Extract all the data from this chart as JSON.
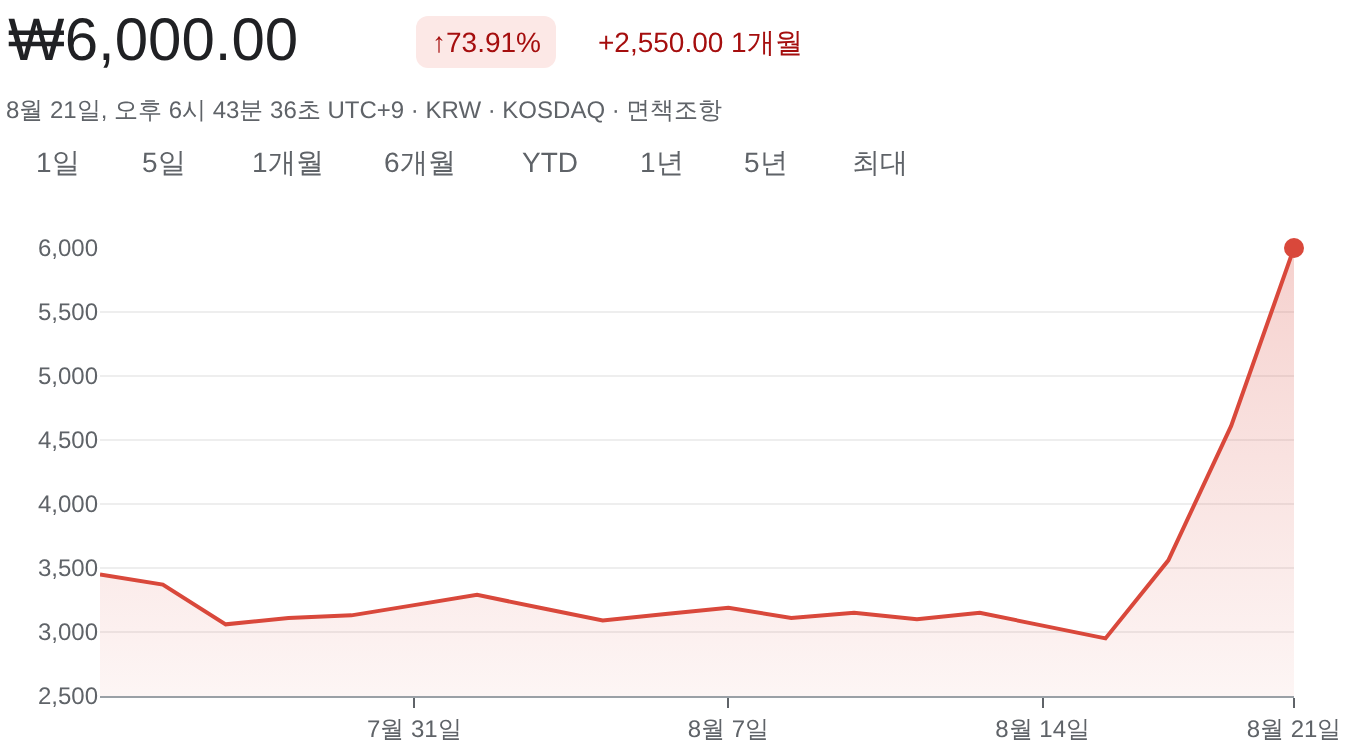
{
  "chart_data": {
    "type": "area",
    "title": "₩6,000.00",
    "subtitle": "8월 21일, 오후 6시 43분 36초 UTC+9 · KRW · KOSDAQ · 면책조항",
    "annotations": [
      "↑73.91%",
      "+2,550.00 1개월",
      "1일",
      "5일",
      "1개월",
      "6개월",
      "YTD",
      "1년",
      "5년",
      "최대"
    ],
    "categories": [
      null,
      null,
      null,
      null,
      null,
      "7월 31일",
      null,
      null,
      null,
      null,
      "8월 7일",
      null,
      null,
      null,
      null,
      "8월 14일",
      null,
      null,
      null,
      "8월 21일"
    ],
    "series": [
      {
        "color": "#d9483b",
        "values": [
          3450,
          3370,
          3060,
          3110,
          3130,
          3210,
          3290,
          3190,
          3090,
          3140,
          3190,
          3110,
          3150,
          3100,
          3150,
          3050,
          2950,
          3560,
          4610,
          6000
        ]
      },
      {
        "type": "scatter",
        "marker": "circle",
        "color": "#d9483b",
        "x": [
          "8월 21일"
        ],
        "values": [
          6000
        ]
      }
    ],
    "ylim": [
      2500,
      6000
    ],
    "yticks": [
      {
        "value": 2500,
        "label": "2,500"
      },
      {
        "value": 3000,
        "label": "3,000"
      },
      {
        "value": 3500,
        "label": "3,500"
      },
      {
        "value": 4000,
        "label": "4,000"
      },
      {
        "value": 4500,
        "label": "4,500"
      },
      {
        "value": 5000,
        "label": "5,000"
      },
      {
        "value": 5500,
        "label": "5,500"
      },
      {
        "value": 6000,
        "label": "6,000"
      }
    ],
    "grid": "y"
  }
}
